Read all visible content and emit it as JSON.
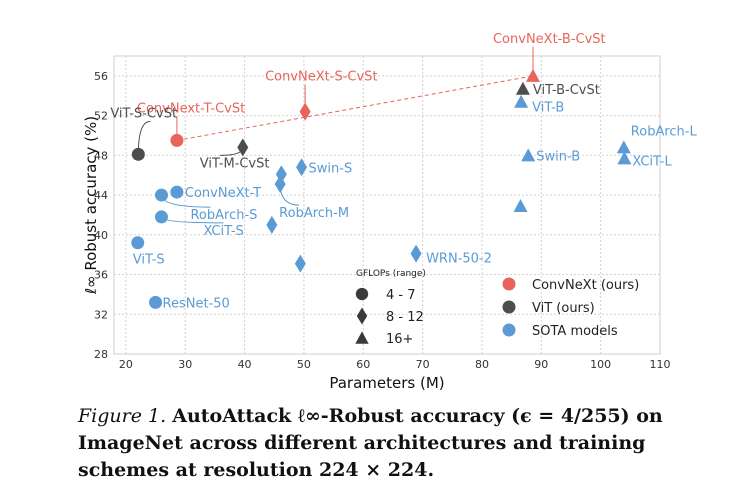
{
  "chart_data": {
    "type": "scatter",
    "xlabel": "Parameters (M)",
    "ylabel": "ℓ∞ Robust accuracy (%)",
    "xlim": [
      18,
      110
    ],
    "ylim": [
      28,
      58
    ],
    "xticks": [
      20,
      30,
      40,
      50,
      60,
      70,
      80,
      90,
      100,
      110
    ],
    "yticks": [
      28,
      32,
      36,
      40,
      44,
      48,
      52,
      56
    ],
    "grid": true,
    "colors": {
      "convnext": "#e8645a",
      "vit": "#4d4d4d",
      "sota": "#5b9bd5"
    },
    "points": [
      {
        "x": 28.6,
        "y": 49.5,
        "group": "convnext",
        "marker": "circle",
        "label": "ConvNext-T-CvSt"
      },
      {
        "x": 50.2,
        "y": 52.4,
        "group": "convnext",
        "marker": "diamond",
        "label": "ConvNeXt-S-CvSt"
      },
      {
        "x": 88.6,
        "y": 56.0,
        "group": "convnext",
        "marker": "triangle",
        "label": "ConvNeXt-B-CvSt"
      },
      {
        "x": 22.1,
        "y": 48.1,
        "group": "vit",
        "marker": "circle",
        "label": "ViT-S-CvSt"
      },
      {
        "x": 39.7,
        "y": 48.8,
        "group": "vit",
        "marker": "diamond",
        "label": "ViT-M-CvSt"
      },
      {
        "x": 86.9,
        "y": 54.7,
        "group": "vit",
        "marker": "triangle",
        "label": "ViT-B-CvSt"
      },
      {
        "x": 86.6,
        "y": 53.4,
        "group": "sota",
        "marker": "triangle",
        "label": "ViT-B"
      },
      {
        "x": 103.9,
        "y": 48.8,
        "group": "sota",
        "marker": "triangle",
        "label": "RobArch-L"
      },
      {
        "x": 104.0,
        "y": 47.7,
        "group": "sota",
        "marker": "triangle",
        "label": "XCiT-L"
      },
      {
        "x": 87.8,
        "y": 48.0,
        "group": "sota",
        "marker": "triangle",
        "label": "Swin-B"
      },
      {
        "x": 86.5,
        "y": 42.9,
        "group": "sota",
        "marker": "triangle",
        "label": ""
      },
      {
        "x": 49.6,
        "y": 46.8,
        "group": "sota",
        "marker": "diamond",
        "label": "Swin-S"
      },
      {
        "x": 46.2,
        "y": 46.1,
        "group": "sota",
        "marker": "diamond",
        "label": ""
      },
      {
        "x": 46.0,
        "y": 45.1,
        "group": "sota",
        "marker": "diamond",
        "label": "RobArch-M"
      },
      {
        "x": 44.6,
        "y": 41.0,
        "group": "sota",
        "marker": "diamond",
        "label": ""
      },
      {
        "x": 49.4,
        "y": 37.1,
        "group": "sota",
        "marker": "diamond",
        "label": ""
      },
      {
        "x": 68.9,
        "y": 38.1,
        "group": "sota",
        "marker": "diamond",
        "label": "WRN-50-2"
      },
      {
        "x": 28.6,
        "y": 44.3,
        "group": "sota",
        "marker": "circle",
        "label": "ConvNeXt-T"
      },
      {
        "x": 26.0,
        "y": 44.0,
        "group": "sota",
        "marker": "circle",
        "label": "RobArch-S"
      },
      {
        "x": 26.0,
        "y": 41.8,
        "group": "sota",
        "marker": "circle",
        "label": "XCiT-S"
      },
      {
        "x": 22.0,
        "y": 39.2,
        "group": "sota",
        "marker": "circle",
        "label": "ViT-S"
      },
      {
        "x": 25.0,
        "y": 33.2,
        "group": "sota",
        "marker": "circle",
        "label": "ResNet-50"
      }
    ],
    "trend_line": {
      "from": [
        28.6,
        49.5
      ],
      "to": [
        88.6,
        56.0
      ],
      "style": "dashed"
    },
    "legend_size": {
      "title": "GFLOPs (range)",
      "entries": [
        {
          "marker": "circle",
          "label": "4 - 7"
        },
        {
          "marker": "diamond",
          "label": "8 - 12"
        },
        {
          "marker": "triangle",
          "label": "16+"
        }
      ]
    },
    "legend_color": {
      "placement": "lower-right",
      "entries": [
        {
          "group": "convnext",
          "label": "ConvNeXt (ours)"
        },
        {
          "group": "vit",
          "label": "ViT (ours)"
        },
        {
          "group": "sota",
          "label": "SOTA models"
        }
      ]
    }
  },
  "caption": {
    "figure_no": "Figure 1.",
    "text": "AutoAttack ℓ∞-Robust accuracy (ϵ = 4/255) on ImageNet across different architectures and training schemes at resolution 224 × 224."
  }
}
